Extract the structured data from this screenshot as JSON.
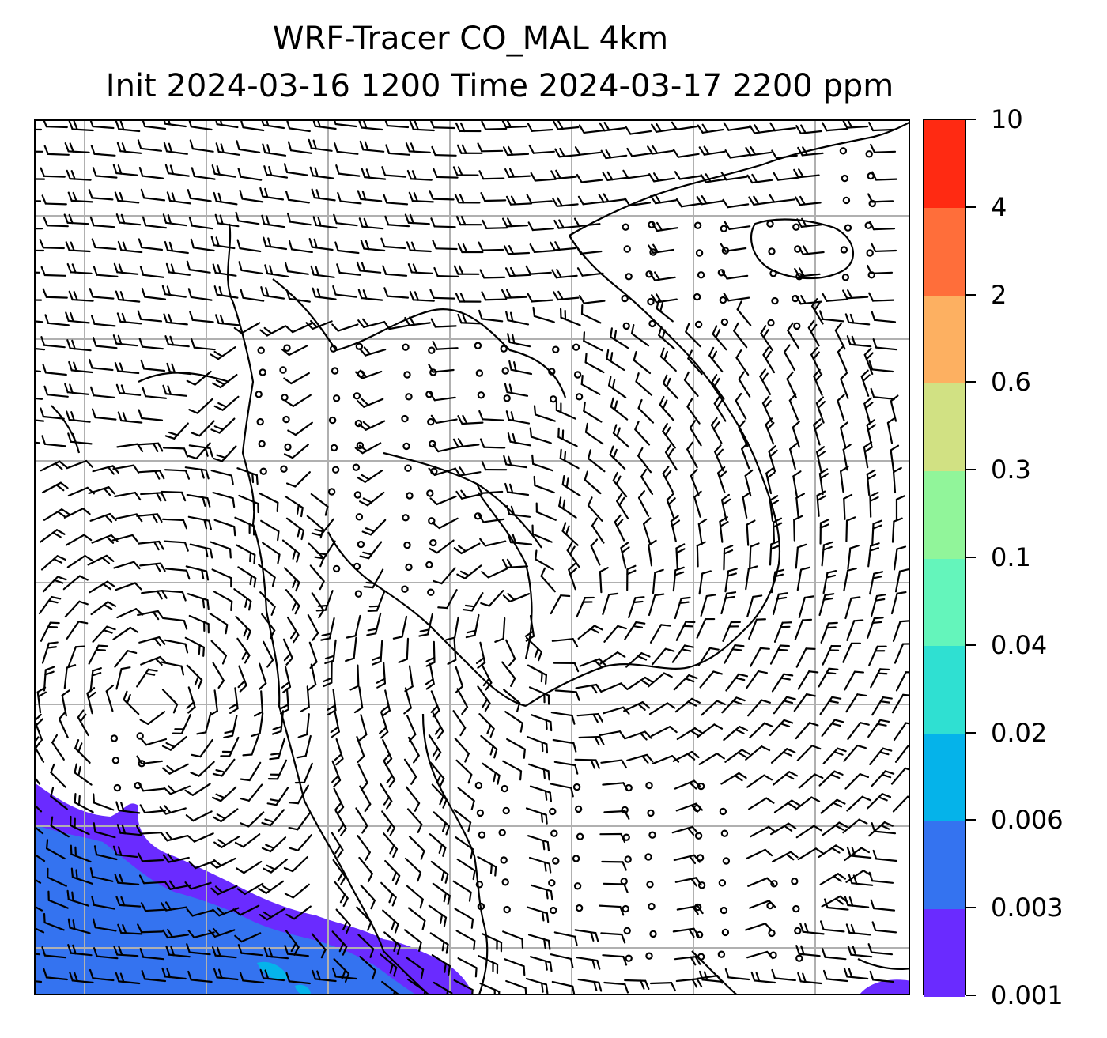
{
  "title": {
    "line1": "WRF-Tracer CO_MAL 4km",
    "line2": "Init 2024-03-16 1200 Time 2024-03-17 2200 ppm"
  },
  "colorbar": {
    "levels": [
      "0.001",
      "0.003",
      "0.006",
      "0.02",
      "0.04",
      "0.1",
      "0.3",
      "0.6",
      "2",
      "4",
      "10"
    ],
    "colors": [
      "#6a2bff",
      "#3473f0",
      "#05b3ea",
      "#2fe0d2",
      "#64f5bb",
      "#91f59a",
      "#d1e183",
      "#fdb061",
      "#ff6e3a",
      "#ff2a12"
    ]
  },
  "map": {
    "fill_colors": {
      "level_0_001": "#6a2bff",
      "level_0_003": "#3473f0",
      "level_0_006": "#05b3ea"
    },
    "gridlines": true,
    "coastline_color": "#000000",
    "wind_barb_color": "#000000"
  }
}
